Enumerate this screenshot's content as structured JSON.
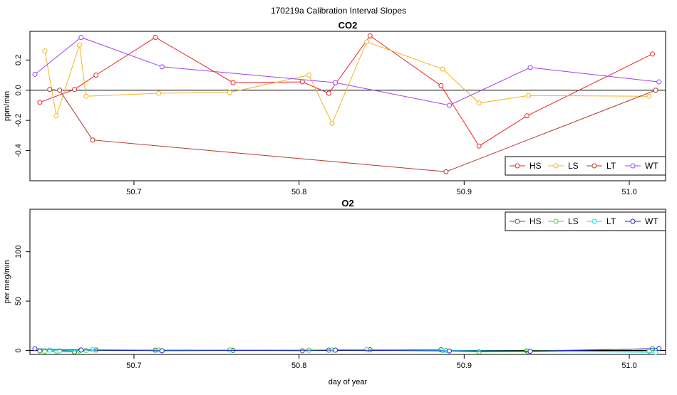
{
  "figure": {
    "title": "170219a   Calibration Interval Slopes"
  },
  "chart_data": [
    {
      "type": "line",
      "title": "CO2",
      "xlabel": "",
      "ylabel": "ppm/min",
      "xlim": [
        50.637,
        51.022
      ],
      "ylim": [
        -0.6,
        0.39
      ],
      "xticks": [
        50.7,
        50.8,
        50.9,
        51.0
      ],
      "xtick_labels": [
        "50.7",
        "50.8",
        "50.9",
        "51.0"
      ],
      "yticks": [
        -0.4,
        -0.2,
        0.0,
        0.2
      ],
      "ytick_labels": [
        "-0.4",
        "-0.2",
        "0.0",
        "0.2"
      ],
      "zero_line": true,
      "grid": false,
      "legend": {
        "position": "bottom-right",
        "entries": [
          "HS",
          "LS",
          "LT",
          "WT"
        ]
      },
      "series": [
        {
          "name": "HS",
          "color": "#ee2222",
          "x": [
            50.643,
            50.664,
            50.677,
            50.713,
            50.76,
            50.802,
            50.818,
            50.843,
            50.886,
            50.909,
            50.938,
            51.014
          ],
          "y": [
            -0.08,
            0.005,
            0.1,
            0.35,
            0.05,
            0.055,
            -0.02,
            0.36,
            0.03,
            -0.37,
            -0.17,
            0.24
          ]
        },
        {
          "name": "LS",
          "color": "#f5b21e",
          "x": [
            50.646,
            50.653,
            50.667,
            50.671,
            50.715,
            50.758,
            50.806,
            50.82,
            50.841,
            50.887,
            50.909,
            50.939,
            51.012
          ],
          "y": [
            0.26,
            -0.17,
            0.3,
            -0.04,
            -0.02,
            -0.015,
            0.1,
            -0.22,
            0.32,
            0.14,
            -0.085,
            -0.035,
            -0.04
          ]
        },
        {
          "name": "LT",
          "color": "#b03a2e",
          "x": [
            50.649,
            50.655,
            50.675,
            50.889,
            51.016
          ],
          "y": [
            0.005,
            0.0,
            -0.33,
            -0.54,
            0.0
          ]
        },
        {
          "name": "WT",
          "color": "#a040f0",
          "x": [
            50.64,
            50.668,
            50.717,
            50.822,
            50.891,
            50.94,
            51.018
          ],
          "y": [
            0.105,
            0.35,
            0.155,
            0.05,
            -0.1,
            0.15,
            0.055
          ]
        }
      ]
    },
    {
      "type": "line",
      "title": "O2",
      "xlabel": "day of year",
      "ylabel": "per meg/min",
      "xlim": [
        50.637,
        51.022
      ],
      "ylim": [
        -4,
        143
      ],
      "xticks": [
        50.7,
        50.8,
        50.9,
        51.0
      ],
      "xtick_labels": [
        "50.7",
        "50.8",
        "50.9",
        "51.0"
      ],
      "yticks": [
        0,
        50,
        100
      ],
      "ytick_labels": [
        "0",
        "50",
        "100"
      ],
      "zero_line": true,
      "grid": false,
      "legend": {
        "position": "top-right",
        "entries": [
          "HS",
          "LS",
          "LT",
          "WT"
        ]
      },
      "series": [
        {
          "name": "HS",
          "color": "#2a7a2a",
          "x": [
            50.643,
            50.664,
            50.677,
            50.713,
            50.76,
            50.802,
            50.818,
            50.843,
            50.886,
            50.909,
            50.938,
            51.014
          ],
          "y": [
            -0.5,
            -1.5,
            0.5,
            0.3,
            0.0,
            -0.3,
            0.3,
            0.8,
            0.8,
            -1.3,
            -0.5,
            1.8
          ]
        },
        {
          "name": "LS",
          "color": "#33dd33",
          "x": [
            50.646,
            50.653,
            50.667,
            50.671,
            50.715,
            50.758,
            50.806,
            50.82,
            50.841,
            50.887,
            50.909,
            50.939,
            51.012
          ],
          "y": [
            -1.0,
            -0.8,
            -0.5,
            0.0,
            0.5,
            0.5,
            0.3,
            0.5,
            0.8,
            0.0,
            -1.5,
            -0.8,
            -0.8
          ]
        },
        {
          "name": "LT",
          "color": "#22dddd",
          "x": [
            50.649,
            50.655,
            50.675,
            50.889,
            51.016
          ],
          "y": [
            0.3,
            -0.5,
            0.8,
            0.0,
            -2.0
          ]
        },
        {
          "name": "WT",
          "color": "#2222dd",
          "x": [
            50.64,
            50.668,
            50.717,
            50.822,
            50.891,
            50.94,
            51.018
          ],
          "y": [
            1.8,
            0.5,
            -0.3,
            0.3,
            -0.5,
            -0.8,
            2.0
          ]
        }
      ]
    }
  ]
}
